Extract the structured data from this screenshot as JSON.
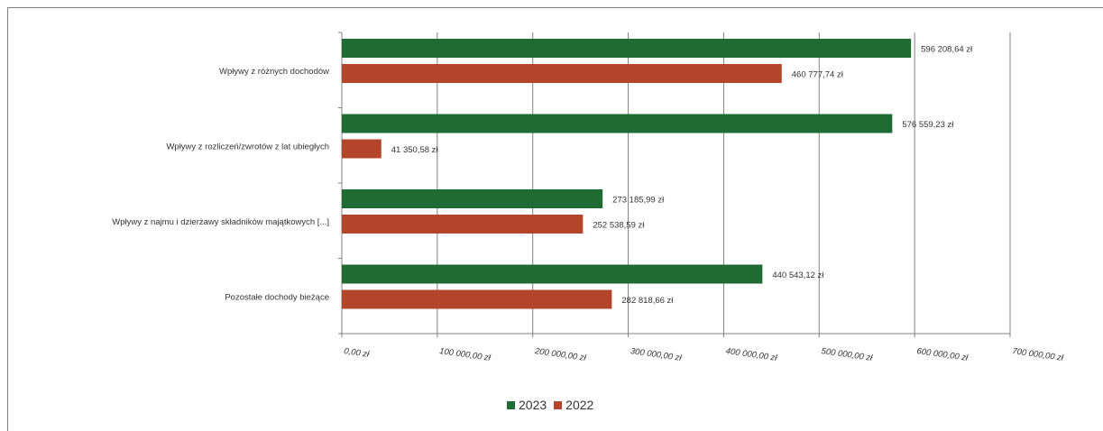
{
  "colors": {
    "series_2023": "#1e6b33",
    "series_2022": "#b5452a",
    "grid": "#808080",
    "axis": "#808080"
  },
  "chart_data": {
    "type": "bar",
    "orientation": "horizontal",
    "categories": [
      "Wpływy z różnych dochodów",
      "Wpływy z rozliczeń/zwrotów z lat ubiegłych",
      "Wpływy z najmu i dzierżawy składników majątkowych [...]",
      "Pozostałe dochody bieżące"
    ],
    "series": [
      {
        "name": "2023",
        "color": "#1e6b33",
        "values": [
          596208.64,
          576559.23,
          273185.99,
          440543.12
        ],
        "labels": [
          "596 208,64 zł",
          "576 559,23 zł",
          "273 185,99 zł",
          "440 543,12 zł"
        ]
      },
      {
        "name": "2022",
        "color": "#b5452a",
        "values": [
          460777.74,
          41350.58,
          252538.59,
          282818.66
        ],
        "labels": [
          "460 777,74 zł",
          "41 350,58 zł",
          "252 538,59 zł",
          "282 818,66 zł"
        ]
      }
    ],
    "xlim": [
      0,
      700000
    ],
    "xticks": [
      0,
      100000,
      200000,
      300000,
      400000,
      500000,
      600000,
      700000
    ],
    "xtick_labels": [
      "0,00 zł",
      "100 000,00 zł",
      "200 000,00 zł",
      "300 000,00 zł",
      "400 000,00 zł",
      "500 000,00 zł",
      "600 000,00 zł",
      "700 000,00 zł"
    ],
    "grid": true,
    "legend_position": "bottom"
  },
  "legend": {
    "label_2023": "2023",
    "label_2022": "2022"
  }
}
